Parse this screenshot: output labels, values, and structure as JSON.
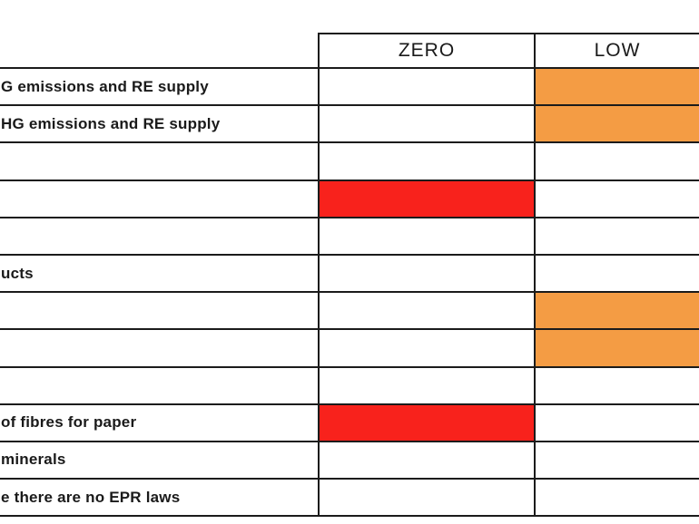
{
  "table": {
    "columns": [
      {
        "key": "zero",
        "label": "ZERO"
      },
      {
        "key": "low",
        "label": "LOW"
      }
    ],
    "rows": [
      {
        "label": "G emissions and RE supply",
        "zero": "",
        "low": "orange"
      },
      {
        "label": "HG emissions and RE supply",
        "zero": "",
        "low": "orange"
      },
      {
        "label": "",
        "zero": "",
        "low": ""
      },
      {
        "label": "",
        "zero": "red",
        "low": ""
      },
      {
        "label": "",
        "zero": "",
        "low": ""
      },
      {
        "label": "ucts",
        "zero": "",
        "low": ""
      },
      {
        "label": "",
        "zero": "",
        "low": "orange"
      },
      {
        "label": "",
        "zero": "",
        "low": "orange"
      },
      {
        "label": "",
        "zero": "",
        "low": ""
      },
      {
        "label": "of fibres for paper",
        "zero": "red",
        "low": ""
      },
      {
        "label": "minerals",
        "zero": "",
        "low": ""
      },
      {
        "label": "e there are no EPR laws",
        "zero": "",
        "low": ""
      }
    ]
  },
  "colors": {
    "orange": "#F49C44",
    "red": "#F8221C",
    "border": "#1b1b1b",
    "text": "#1a1a1a"
  }
}
